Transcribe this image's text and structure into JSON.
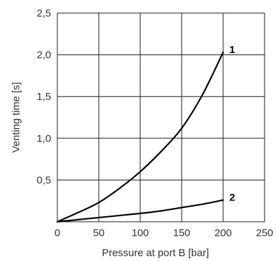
{
  "chart_data": {
    "type": "line",
    "title": "",
    "xlabel": "Pressure at port B [bar]",
    "ylabel": "Venting time [s]",
    "xlim": [
      0,
      250
    ],
    "ylim": [
      0,
      2.5
    ],
    "x_ticks": [
      0,
      50,
      100,
      150,
      200,
      250
    ],
    "y_ticks": [
      0.5,
      1.0,
      1.5,
      2.0,
      2.5
    ],
    "x_tick_labels": [
      "0",
      "50",
      "100",
      "150",
      "200",
      "250"
    ],
    "y_tick_labels": [
      "0,5",
      "1,0",
      "1,5",
      "2,0",
      "2,5"
    ],
    "grid": true,
    "series": [
      {
        "label": "1",
        "x": [
          0,
          25,
          50,
          75,
          100,
          125,
          150,
          175,
          200
        ],
        "y": [
          0.0,
          0.11,
          0.23,
          0.4,
          0.6,
          0.84,
          1.12,
          1.52,
          2.03
        ]
      },
      {
        "label": "2",
        "x": [
          0,
          25,
          50,
          75,
          100,
          125,
          150,
          175,
          200
        ],
        "y": [
          0.0,
          0.025,
          0.05,
          0.075,
          0.1,
          0.13,
          0.17,
          0.21,
          0.26
        ]
      }
    ]
  }
}
